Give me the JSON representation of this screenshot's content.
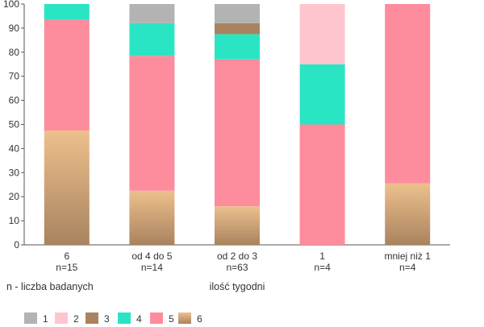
{
  "chart_data": {
    "type": "bar",
    "stacked": true,
    "categories": [
      "6",
      "od 4 do 5",
      "od 2 do 3",
      "1",
      "mniej niż 1"
    ],
    "category_counts": [
      "n=15",
      "n=14",
      "n=63",
      "n=4",
      "n=4"
    ],
    "xlabel": "ilość tygodni",
    "ylabel": "",
    "note": "n - liczba badanych",
    "ylim": [
      0,
      100
    ],
    "yticks": [
      0,
      10,
      20,
      30,
      40,
      50,
      60,
      70,
      80,
      90,
      100
    ],
    "grid": false,
    "legend": {
      "position": "bottom-left"
    },
    "series": [
      {
        "name": "6",
        "color_top": "#edc08d",
        "color_bottom": "#a9835f",
        "values": [
          47.5,
          22.5,
          16.0,
          0,
          25.5
        ]
      },
      {
        "name": "5",
        "color": "#fd8c9d",
        "values": [
          46.0,
          56.0,
          61.0,
          50.0,
          74.5
        ]
      },
      {
        "name": "4",
        "color": "#2ae5c3",
        "values": [
          6.5,
          13.5,
          10.5,
          25.0,
          0
        ]
      },
      {
        "name": "3",
        "color": "#a9835f",
        "values": [
          0,
          0,
          4.5,
          0,
          0
        ]
      },
      {
        "name": "2",
        "color": "#ffc5ce",
        "values": [
          0,
          0,
          0,
          25.0,
          0
        ]
      },
      {
        "name": "1",
        "color": "#b3b3b3",
        "values": [
          0,
          8.0,
          8.0,
          0,
          0
        ]
      }
    ],
    "legend_order": [
      "1",
      "2",
      "3",
      "4",
      "5",
      "6"
    ]
  }
}
